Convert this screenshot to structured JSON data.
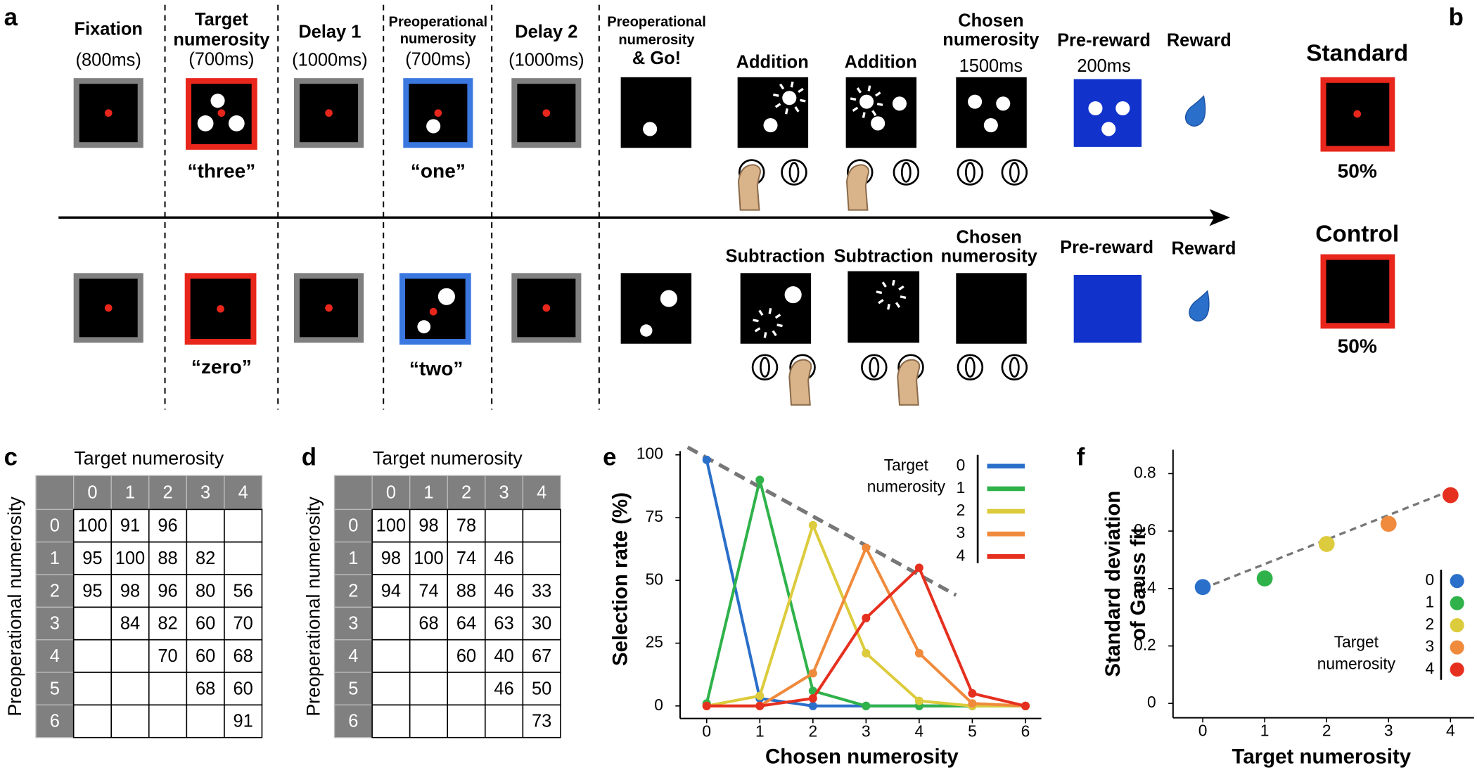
{
  "panel_labels": [
    "a",
    "b",
    "c",
    "d",
    "e",
    "f"
  ],
  "task": {
    "fixation": [
      "Fixation",
      "(800ms)"
    ],
    "target": [
      "Target",
      "numerosity",
      "(700ms)"
    ],
    "delay1": [
      "Delay 1",
      "(1000ms)"
    ],
    "preop": [
      "Preoperational",
      "numerosity",
      "(700ms)"
    ],
    "delay2": [
      "Delay 2",
      "(1000ms)"
    ],
    "go": [
      "Preoperational",
      "numerosity",
      "& Go!"
    ],
    "addition": [
      "Addition",
      "Addition"
    ],
    "chosen_top": [
      "Chosen",
      "numerosity",
      "1500ms"
    ],
    "prereward_top": [
      "Pre-reward",
      "200ms"
    ],
    "reward_top": "Reward",
    "subtraction": [
      "Subtraction",
      "Subtraction"
    ],
    "chosen_bottom": [
      "Chosen",
      "numerosity"
    ],
    "prereward_bottom": "Pre-reward",
    "reward_bottom": "Reward",
    "words_top": [
      "“three”",
      "“one”"
    ],
    "words_bottom": [
      "“zero”",
      "“two”"
    ]
  },
  "conditions": {
    "standard": "Standard",
    "standard_rate": "50%",
    "control": "Control",
    "control_rate": "50%"
  },
  "tables": [
    {
      "title": "Target numerosity",
      "row_label": "Preoperational numerosity",
      "columns": [
        0,
        1,
        2,
        3,
        4
      ],
      "rows": [
        0,
        1,
        2,
        3,
        4,
        5,
        6
      ],
      "cells": [
        [
          100,
          91,
          96,
          null,
          null
        ],
        [
          95,
          100,
          88,
          82,
          null
        ],
        [
          95,
          98,
          96,
          80,
          56
        ],
        [
          null,
          84,
          82,
          60,
          70
        ],
        [
          null,
          null,
          70,
          60,
          68
        ],
        [
          null,
          null,
          null,
          68,
          60
        ],
        [
          null,
          null,
          null,
          null,
          91
        ]
      ]
    },
    {
      "title": "Target numerosity",
      "row_label": "Preoperational numerosity",
      "columns": [
        0,
        1,
        2,
        3,
        4
      ],
      "rows": [
        0,
        1,
        2,
        3,
        4,
        5,
        6
      ],
      "cells": [
        [
          100,
          98,
          78,
          null,
          null
        ],
        [
          98,
          100,
          74,
          46,
          null
        ],
        [
          94,
          74,
          88,
          46,
          33
        ],
        [
          null,
          68,
          64,
          63,
          30
        ],
        [
          null,
          null,
          60,
          40,
          67
        ],
        [
          null,
          null,
          null,
          46,
          50
        ],
        [
          null,
          null,
          null,
          null,
          73
        ]
      ]
    }
  ],
  "chart_data": [
    {
      "type": "line",
      "x_label": "Chosen numerosity",
      "y_label": "Selection rate (%)",
      "legend_title": [
        "Target",
        "numerosity"
      ],
      "x": [
        0,
        1,
        2,
        3,
        4,
        5,
        6
      ],
      "xlim": [
        -0.5,
        6.3
      ],
      "xticks": [
        0,
        1,
        2,
        3,
        4,
        5,
        6
      ],
      "ylim": [
        -5,
        100
      ],
      "yticks": [
        0,
        25,
        50,
        75,
        100
      ],
      "series": [
        {
          "name": "0",
          "color": "#2a6fc9",
          "values": [
            98,
            3,
            0,
            0,
            0,
            0,
            0
          ]
        },
        {
          "name": "1",
          "color": "#2fb24a",
          "values": [
            1,
            90,
            6,
            0,
            0,
            0,
            0
          ]
        },
        {
          "name": "2",
          "color": "#dccb3c",
          "values": [
            0,
            4,
            72,
            21,
            2,
            0,
            0
          ]
        },
        {
          "name": "3",
          "color": "#f08a3c",
          "values": [
            0,
            0,
            13,
            63,
            21,
            1,
            0
          ]
        },
        {
          "name": "4",
          "color": "#e6301f",
          "values": [
            0,
            0,
            3,
            35,
            55,
            5,
            0
          ]
        }
      ]
    },
    {
      "type": "scatter",
      "x_label": "Target numerosity",
      "y_label": [
        "Standard deviation",
        "of Gauss fit"
      ],
      "legend_title": [
        "Target",
        "numerosity"
      ],
      "x": [
        0,
        1,
        2,
        3,
        4
      ],
      "values": [
        0.405,
        0.435,
        0.555,
        0.625,
        0.725
      ],
      "colors": [
        "#2a6fc9",
        "#2fb24a",
        "#dccb3c",
        "#f08a3c",
        "#e6301f"
      ],
      "legend": [
        "0",
        "1",
        "2",
        "3",
        "4"
      ],
      "xlim": [
        -0.48,
        4.38
      ],
      "xticks": [
        0,
        1,
        2,
        3,
        4
      ],
      "ylim": [
        -0.05,
        0.87
      ],
      "yticks": [
        0,
        0.2,
        0.4,
        0.6,
        0.8
      ]
    }
  ]
}
